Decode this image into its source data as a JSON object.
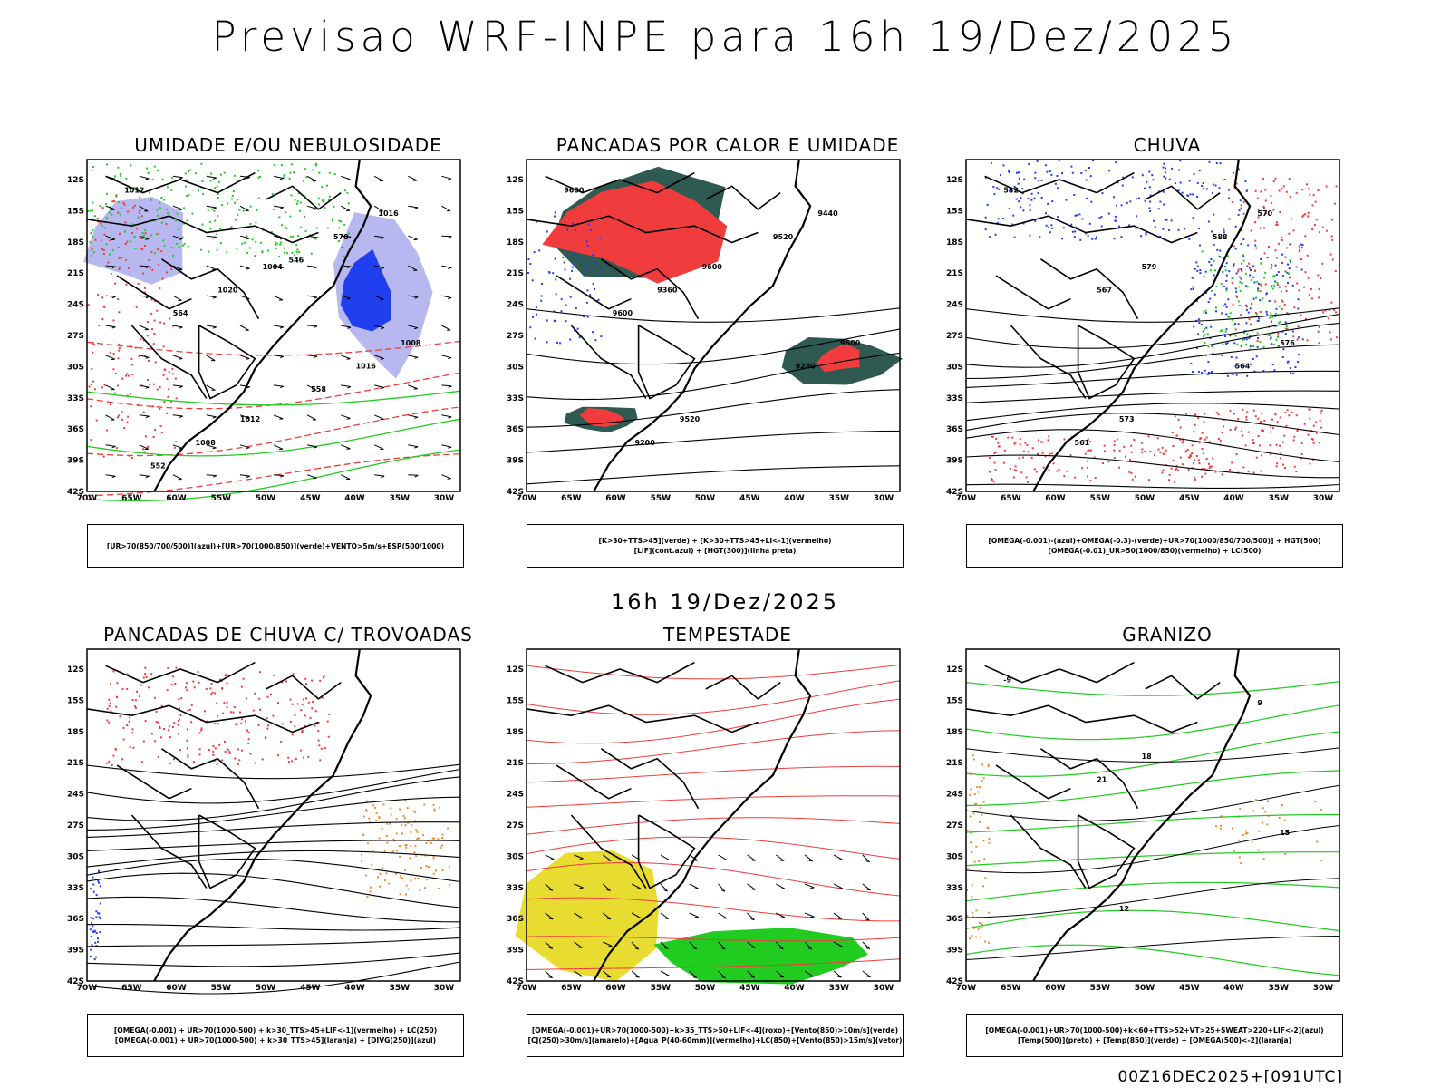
{
  "header": {
    "title": "Previsao WRF-INPE  para 16h 19/Dez/2025"
  },
  "middle_time": "16h 19/Dez/2025",
  "footer": "00Z16DEC2025+[091UTC]",
  "lat_ticks": [
    "12S",
    "15S",
    "18S",
    "21S",
    "24S",
    "27S",
    "30S",
    "33S",
    "36S",
    "39S",
    "42S"
  ],
  "lon_ticks": [
    "70W",
    "65W",
    "60W",
    "55W",
    "50W",
    "45W",
    "40W",
    "35W",
    "30W"
  ],
  "colors": {
    "red": "#f03c3c",
    "green": "#20cc20",
    "blue": "#2040f0",
    "lavender": "#b8b8f0",
    "dark_teal": "#2e5a52",
    "yellow": "#e8dc30",
    "orange": "#f08c30"
  },
  "panels": [
    {
      "id": "umidade",
      "title": "UMIDADE E/OU NEBULOSIDADE",
      "legend": [
        "[UR>70(850/700/500)](azul)+[UR>70(1000/850)](verde)+VENTO>5m/s+ESP(500/1000)"
      ],
      "contour_labels": [
        "1012",
        "1004",
        "1008",
        "1012",
        "1016",
        "1020",
        "1016",
        "1008",
        "570",
        "564",
        "558",
        "552",
        "546"
      ]
    },
    {
      "id": "pancadas_calor",
      "title": "PANCADAS POR CALOR E UMIDADE",
      "legend": [
        "[K>30+TTS>45](verde) + [K>30+TTS>45+LI<-1](vermelho)",
        "[LIF](cont.azul) + [HGT(300)](linha preta)"
      ],
      "contour_labels": [
        "9600",
        "9600",
        "9600",
        "9520",
        "9440",
        "9360",
        "9280",
        "9200",
        "9520",
        "9600"
      ]
    },
    {
      "id": "chuva",
      "title": "CHUVA",
      "legend": [
        "[OMEGA(-0.001)-(azul)+OMEGA(-0.3)-(verde)+UR>70(1000/850/700/500)] + HGT(500)",
        "[OMEGA(-0.01)_UR>50(1000/850)(vermelho) + LC(500)"
      ],
      "contour_labels": [
        "582",
        "579",
        "576",
        "573",
        "570",
        "567",
        "564",
        "561",
        "588"
      ]
    },
    {
      "id": "pancadas_trovoadas",
      "title": "PANCADAS DE CHUVA C/ TROVOADAS",
      "legend": [
        "[OMEGA(-0.001) + UR>70(1000-500) + k>30_TTS>45+LIF<-1](vermelho) + LC(250)",
        "[OMEGA(-0.001) + UR>70(1000-500) + k>30_TTS>45](laranja) + [DIVG(250)](azul)"
      ],
      "contour_labels": []
    },
    {
      "id": "tempestade",
      "title": "TEMPESTADE",
      "legend": [
        "[OMEGA(-0.001)+UR>70(1000-500)+k>35_TTS>50+LIF<-4](roxo)+[Vento(850)>10m/s](verde)",
        "[CJ(250)>30m/s](amarelo)+[Agua_P(40-60mm)](vermelho)+LC(850)+[Vento(850)>15m/s](vetor)"
      ],
      "contour_labels": []
    },
    {
      "id": "granizo",
      "title": "GRANIZO",
      "legend": [
        "[OMEGA(-0.001)+UR>70(1000-500)+k<60+TTS>52+VT>25+SWEAT>220+LIF<-2](azul)",
        "[Temp(500)](preto) + [Temp(850)](verde) + [OMEGA(500)<-2](laranja)"
      ],
      "contour_labels": [
        "-9",
        "18",
        "15",
        "12",
        "9",
        "21"
      ]
    }
  ]
}
